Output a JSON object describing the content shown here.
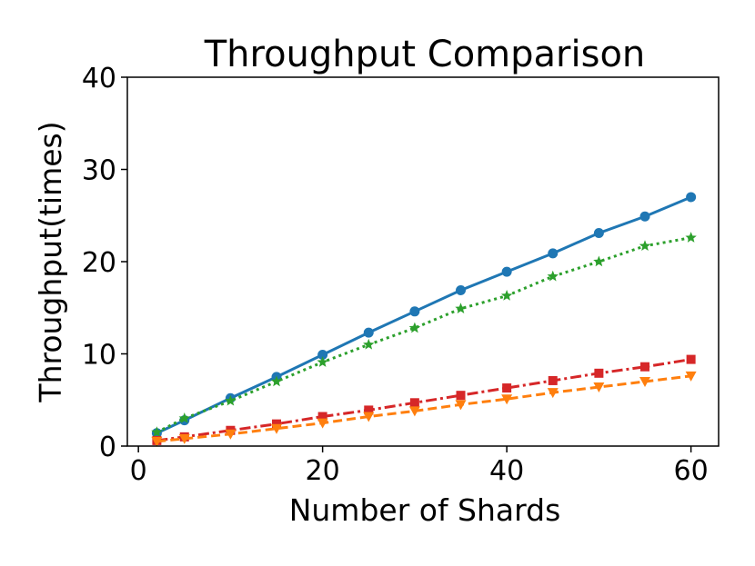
{
  "chart_data": {
    "type": "line",
    "title": "Throughput Comparison",
    "xlabel": "Number of Shards",
    "ylabel": "Throughput(times)",
    "xlim": [
      -1.2,
      63
    ],
    "ylim": [
      0,
      40
    ],
    "xticks": [
      0,
      20,
      40,
      60
    ],
    "yticks": [
      0,
      10,
      20,
      30,
      40
    ],
    "x": [
      2,
      5,
      10,
      15,
      20,
      25,
      30,
      35,
      40,
      45,
      50,
      55,
      60
    ],
    "grid": false,
    "series": [
      {
        "color": "#1f77b4",
        "dash": "solid",
        "marker": "circle",
        "values": [
          1.4,
          2.8,
          5.2,
          7.5,
          9.9,
          12.3,
          14.6,
          16.9,
          18.9,
          20.9,
          23.1,
          24.9,
          27.0
        ]
      },
      {
        "color": "#2ca02c",
        "dash": "dotted",
        "marker": "star",
        "values": [
          1.5,
          3.0,
          4.9,
          7.0,
          9.1,
          11.0,
          12.8,
          14.9,
          16.3,
          18.4,
          20.0,
          21.7,
          22.6
        ]
      },
      {
        "color": "#d62728",
        "dash": "dashdot",
        "marker": "square",
        "values": [
          0.6,
          1.0,
          1.7,
          2.4,
          3.2,
          3.9,
          4.7,
          5.5,
          6.3,
          7.1,
          7.9,
          8.6,
          9.4
        ]
      },
      {
        "color": "#ff7f0e",
        "dash": "dashed",
        "marker": "triangle-down",
        "values": [
          0.5,
          0.8,
          1.3,
          1.9,
          2.5,
          3.2,
          3.8,
          4.5,
          5.1,
          5.8,
          6.4,
          7.0,
          7.6
        ]
      }
    ]
  }
}
